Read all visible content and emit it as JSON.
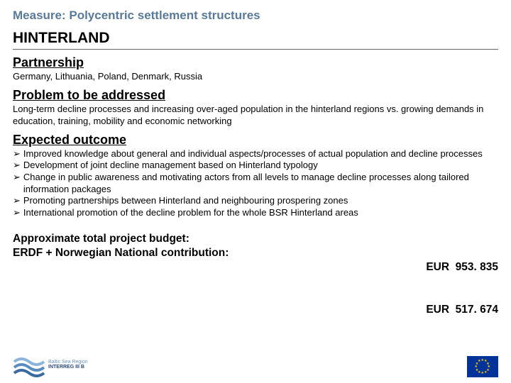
{
  "measure_title": "Measure: Polycentric settlement structures",
  "main_title": "HINTERLAND",
  "partnership": {
    "heading": "Partnership",
    "text": "Germany, Lithuania, Poland, Denmark, Russia"
  },
  "problem": {
    "heading": "Problem to be addressed",
    "text": "Long-term decline processes and increasing over-aged population in the hinterland regions vs. growing demands in education, training, mobility and economic networking"
  },
  "outcome": {
    "heading": "Expected outcome",
    "items": [
      "Improved knowledge about general and individual aspects/processes of actual population and decline processes",
      "Development of joint decline management based on Hinterland typology",
      "Change in public awareness and motivating actors from all levels to manage decline processes along tailored information packages",
      "Promoting partnerships between Hinterland and neighbouring prospering zones",
      "International promotion of the decline problem for the whole BSR Hinterland areas"
    ]
  },
  "budget": {
    "label_line1": "Approximate total project budget:",
    "label_line2": "ERDF + Norwegian National contribution:",
    "value_line1": "EUR  953. 835",
    "value_line2": "EUR  517. 674"
  },
  "logo": {
    "line1": "Baltic Sea Region",
    "line2": "INTERREG III B"
  },
  "colors": {
    "measure_title": "#5a7a9a",
    "text": "#000000",
    "eu_blue": "#003399",
    "eu_gold": "#ffcc00",
    "logo_blue": "#2a4a7a",
    "wave1": "#8cb4d8",
    "wave2": "#5a8cc0",
    "wave3": "#3a6aa0"
  },
  "bullet_marker": "➢"
}
